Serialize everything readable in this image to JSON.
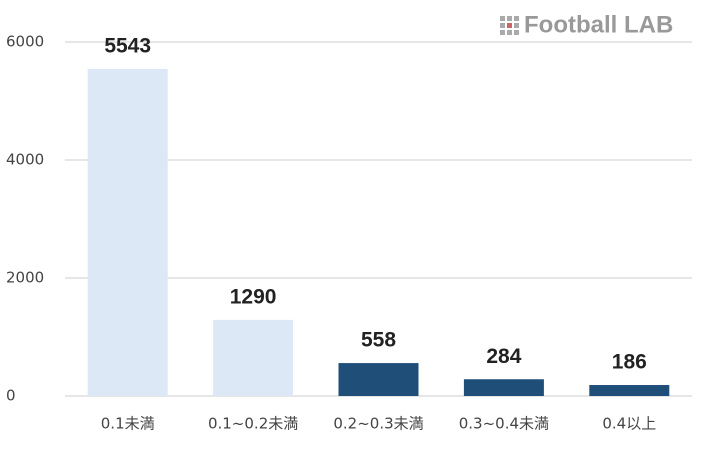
{
  "chart_data": {
    "type": "bar",
    "logo": "Football LAB",
    "categories": [
      "0.1未満",
      "0.1~0.2未満",
      "0.2~0.3未満",
      "0.3~0.4未満",
      "0.4以上"
    ],
    "values": [
      5543,
      1290,
      558,
      284,
      186
    ],
    "colors": [
      "#dce8f5",
      "#dce8f5",
      "#1f4e79",
      "#1f4e79",
      "#1f4e79"
    ],
    "ylim": [
      0,
      6000
    ],
    "yticks": [
      0,
      2000,
      4000,
      6000
    ],
    "grid": true
  }
}
